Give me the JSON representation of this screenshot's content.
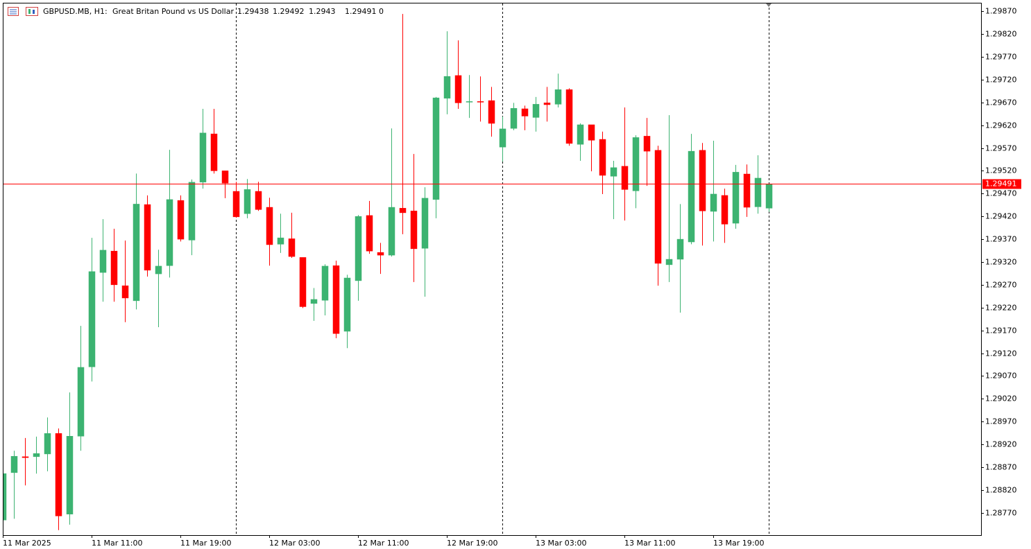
{
  "chart_data": {
    "type": "candlestick",
    "symbol": "GBPUSD.MB, H1:",
    "description": "Great Britan Pound vs US Dollar",
    "header_extra": "0",
    "up_color": "#3cb371",
    "down_color": "#ff0000",
    "current_price": 1.29491,
    "current_price_color": "#ff0000",
    "categories": [
      "11 Mar 2025",
      null,
      null,
      null,
      null,
      null,
      null,
      null,
      "11 Mar 11:00",
      null,
      null,
      null,
      null,
      null,
      null,
      null,
      "11 Mar 19:00",
      null,
      null,
      null,
      null,
      null,
      null,
      null,
      "12 Mar 03:00",
      null,
      null,
      null,
      null,
      null,
      null,
      null,
      "12 Mar 11:00",
      null,
      null,
      null,
      null,
      null,
      null,
      null,
      "12 Mar 19:00",
      null,
      null,
      null,
      null,
      null,
      null,
      null,
      "13 Mar 03:00",
      null,
      null,
      null,
      null,
      null,
      null,
      null,
      "13 Mar 11:00",
      null,
      null,
      null,
      null,
      null,
      null,
      null,
      "13 Mar 19:00",
      null,
      null,
      null,
      null,
      null
    ],
    "open": [
      1.28754,
      1.28858,
      1.28893,
      1.28893,
      1.28899,
      1.28944,
      1.28767,
      1.28938,
      1.2909,
      1.29297,
      1.29344,
      1.29268,
      1.29235,
      1.29446,
      1.29294,
      1.29312,
      1.29455,
      1.29368,
      1.29495,
      1.29601,
      1.2952,
      1.29475,
      1.29426,
      1.29475,
      1.2944,
      1.29359,
      1.29371,
      1.2933,
      1.29229,
      1.29236,
      1.29312,
      1.29168,
      1.29279,
      1.29422,
      1.29341,
      1.29335,
      1.29438,
      1.29432,
      1.2935,
      1.29457,
      1.29679,
      1.29729,
      1.29671,
      1.29672,
      1.29674,
      1.29572,
      1.29613,
      1.29656,
      1.29637,
      1.29669,
      1.29666,
      1.29698,
      1.29578,
      1.29621,
      1.29589,
      1.29508,
      1.2953,
      1.29476,
      1.29596,
      1.29565,
      1.29314,
      1.29326,
      1.29364,
      1.29565,
      1.29431,
      1.29466,
      1.29405,
      1.29513,
      1.29441,
      1.29438
    ],
    "high": [
      1.28861,
      1.28906,
      1.28934,
      1.28937,
      1.28979,
      1.28955,
      1.29034,
      1.2918,
      1.29373,
      1.29414,
      1.29393,
      1.29367,
      1.29514,
      1.29466,
      1.29347,
      1.29566,
      1.29466,
      1.29501,
      1.29656,
      1.29656,
      1.2952,
      1.29496,
      1.29502,
      1.29496,
      1.29461,
      1.29426,
      1.29428,
      1.2933,
      1.29263,
      1.29315,
      1.29323,
      1.29292,
      1.29423,
      1.29454,
      1.29362,
      1.29613,
      1.29864,
      1.29557,
      1.29484,
      1.29682,
      1.29826,
      1.29806,
      1.2973,
      1.29727,
      1.29704,
      1.29639,
      1.29669,
      1.29663,
      1.29682,
      1.29704,
      1.29733,
      1.29701,
      1.29624,
      1.29621,
      1.29606,
      1.29542,
      1.29659,
      1.29598,
      1.29636,
      1.29575,
      1.29642,
      1.29447,
      1.29601,
      1.29581,
      1.29586,
      1.29481,
      1.29533,
      1.29534,
      1.29554,
      1.29492
    ],
    "low": [
      1.28751,
      1.28757,
      1.2883,
      1.28856,
      1.28861,
      1.28732,
      1.28744,
      1.28906,
      1.29058,
      1.29233,
      1.29233,
      1.29188,
      1.29216,
      1.29288,
      1.29177,
      1.29286,
      1.29365,
      1.29335,
      1.29481,
      1.29514,
      1.2946,
      1.29417,
      1.29416,
      1.29432,
      1.29312,
      1.2934,
      1.29329,
      1.29219,
      1.29191,
      1.29203,
      1.29153,
      1.29131,
      1.29235,
      1.29338,
      1.29294,
      1.29332,
      1.29381,
      1.29276,
      1.29244,
      1.29416,
      1.29644,
      1.29656,
      1.29636,
      1.29628,
      1.29595,
      1.2954,
      1.29609,
      1.29609,
      1.29606,
      1.29628,
      1.29659,
      1.29575,
      1.29542,
      1.29519,
      1.29469,
      1.29414,
      1.29411,
      1.29438,
      1.29487,
      1.29268,
      1.29276,
      1.29209,
      1.29359,
      1.29356,
      1.29365,
      1.29362,
      1.29393,
      1.29419,
      1.29426,
      1.2943
    ],
    "close": [
      1.28856,
      1.28894,
      1.28891,
      1.289,
      1.28944,
      1.28763,
      1.28938,
      1.29089,
      1.29299,
      1.29346,
      1.2927,
      1.29241,
      1.29447,
      1.29302,
      1.29311,
      1.29457,
      1.2937,
      1.29495,
      1.29603,
      1.2952,
      1.29493,
      1.29419,
      1.29479,
      1.29435,
      1.29358,
      1.29373,
      1.29332,
      1.29222,
      1.29238,
      1.29311,
      1.29163,
      1.29285,
      1.2942,
      1.29344,
      1.29335,
      1.2944,
      1.29428,
      1.29349,
      1.2946,
      1.2968,
      1.29727,
      1.29669,
      1.29672,
      1.29671,
      1.29624,
      1.29612,
      1.29657,
      1.2964,
      1.29666,
      1.29665,
      1.29698,
      1.2958,
      1.29621,
      1.29587,
      1.2951,
      1.29527,
      1.29479,
      1.29593,
      1.29563,
      1.29317,
      1.29326,
      1.2937,
      1.29563,
      1.29432,
      1.29469,
      1.29403,
      1.29517,
      1.2944,
      1.29504,
      1.29491
    ],
    "ylim": [
      1.28721,
      1.29887
    ],
    "yticks": [
      {
        "value": 1.2987,
        "label": "1.29870"
      },
      {
        "value": 1.2982,
        "label": "1.29820"
      },
      {
        "value": 1.2977,
        "label": "1.29770"
      },
      {
        "value": 1.2972,
        "label": "1.29720"
      },
      {
        "value": 1.2967,
        "label": "1.29670"
      },
      {
        "value": 1.2962,
        "label": "1.29620"
      },
      {
        "value": 1.2957,
        "label": "1.29570"
      },
      {
        "value": 1.2952,
        "label": "1.29520"
      },
      {
        "value": 1.2947,
        "label": "1.29470"
      },
      {
        "value": 1.2942,
        "label": "1.29420"
      },
      {
        "value": 1.2937,
        "label": "1.29370"
      },
      {
        "value": 1.2932,
        "label": "1.29320"
      },
      {
        "value": 1.2927,
        "label": "1.29270"
      },
      {
        "value": 1.2922,
        "label": "1.29220"
      },
      {
        "value": 1.2917,
        "label": "1.29170"
      },
      {
        "value": 1.2912,
        "label": "1.29120"
      },
      {
        "value": 1.2907,
        "label": "1.29070"
      },
      {
        "value": 1.2902,
        "label": "1.29020"
      },
      {
        "value": 1.2897,
        "label": "1.28970"
      },
      {
        "value": 1.2892,
        "label": "1.28920"
      },
      {
        "value": 1.2887,
        "label": "1.28870"
      },
      {
        "value": 1.2882,
        "label": "1.28820"
      },
      {
        "value": 1.2877,
        "label": "1.28770"
      }
    ]
  }
}
